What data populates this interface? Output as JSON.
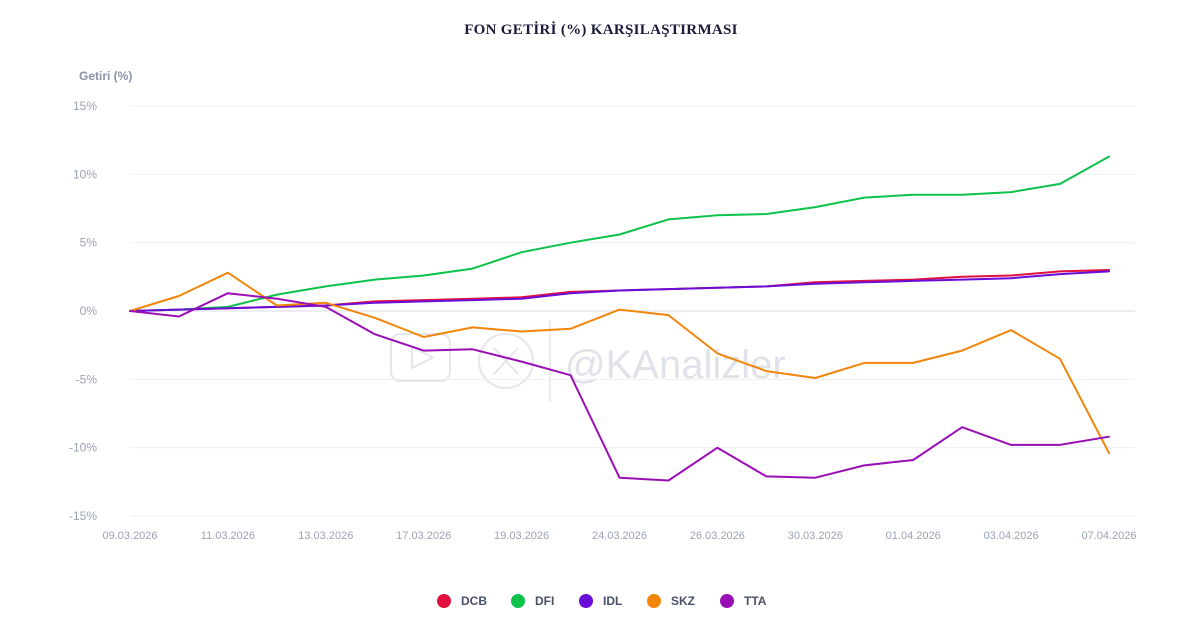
{
  "chart_data": {
    "type": "line",
    "title": "FON GETİRİ (%) KARŞILAŞTIRMASI",
    "ylabel": "Getiri (%)",
    "xlabel": "",
    "ylim": [
      -15,
      15
    ],
    "yticks": [
      15,
      10,
      5,
      0,
      -5,
      -10,
      -15
    ],
    "ytick_labels": [
      "15%",
      "10%",
      "5%",
      "0%",
      "-5%",
      "-10%",
      "-15%"
    ],
    "x": [
      "09.03.2026",
      "10.03.2026",
      "11.03.2026",
      "12.03.2026",
      "13.03.2026",
      "16.03.2026",
      "17.03.2026",
      "18.03.2026",
      "19.03.2026",
      "20.03.2026",
      "24.03.2026",
      "25.03.2026",
      "26.03.2026",
      "27.03.2026",
      "30.03.2026",
      "31.03.2026",
      "01.04.2026",
      "02.04.2026",
      "03.04.2026",
      "06.04.2026",
      "07.04.2026"
    ],
    "xtick_labels": [
      "09.03.2026",
      "11.03.2026",
      "13.03.2026",
      "17.03.2026",
      "19.03.2026",
      "24.03.2026",
      "26.03.2026",
      "30.03.2026",
      "01.04.2026",
      "03.04.2026",
      "07.04.2026"
    ],
    "series": [
      {
        "name": "DCB",
        "color": "#e0103f",
        "values": [
          0,
          0.1,
          0.2,
          0.3,
          0.4,
          0.7,
          0.8,
          0.9,
          1.0,
          1.4,
          1.5,
          1.6,
          1.7,
          1.8,
          2.1,
          2.2,
          2.3,
          2.5,
          2.6,
          2.9,
          3.0
        ]
      },
      {
        "name": "DFI",
        "color": "#0cc24a",
        "values": [
          0,
          0.1,
          0.3,
          1.2,
          1.8,
          2.3,
          2.6,
          3.1,
          4.3,
          5.0,
          5.6,
          6.7,
          7.0,
          7.1,
          7.6,
          8.3,
          8.5,
          8.5,
          8.7,
          9.3,
          11.3
        ]
      },
      {
        "name": "IDL",
        "color": "#6a0dd8",
        "values": [
          0,
          0.1,
          0.2,
          0.3,
          0.4,
          0.6,
          0.7,
          0.8,
          0.9,
          1.3,
          1.5,
          1.6,
          1.7,
          1.8,
          2.0,
          2.1,
          2.2,
          2.3,
          2.4,
          2.7,
          2.9
        ]
      },
      {
        "name": "SKZ",
        "color": "#f2850a",
        "values": [
          0,
          1.1,
          2.8,
          0.4,
          0.6,
          -0.5,
          -1.9,
          -1.2,
          -1.5,
          -1.3,
          0.1,
          -0.3,
          -3.1,
          -4.4,
          -4.9,
          -3.8,
          -3.8,
          -2.9,
          -1.4,
          -3.5,
          -10.4
        ]
      },
      {
        "name": "TTA",
        "color": "#9a0fb5",
        "values": [
          0,
          -0.4,
          1.3,
          0.9,
          0.3,
          -1.7,
          -2.9,
          -2.8,
          -3.7,
          -4.7,
          -12.2,
          -12.4,
          -10.0,
          -12.1,
          -12.2,
          -11.3,
          -10.9,
          -8.5,
          -9.8,
          -9.8,
          -9.2
        ]
      }
    ],
    "legend": [
      "DCB",
      "DFI",
      "IDL",
      "SKZ",
      "TTA"
    ],
    "legend_position": "bottom-center",
    "grid": true,
    "watermark": "@KAnalizler"
  },
  "icons": {
    "watermark_play": "youtube-play-icon",
    "watermark_x": "x-logo-icon"
  }
}
